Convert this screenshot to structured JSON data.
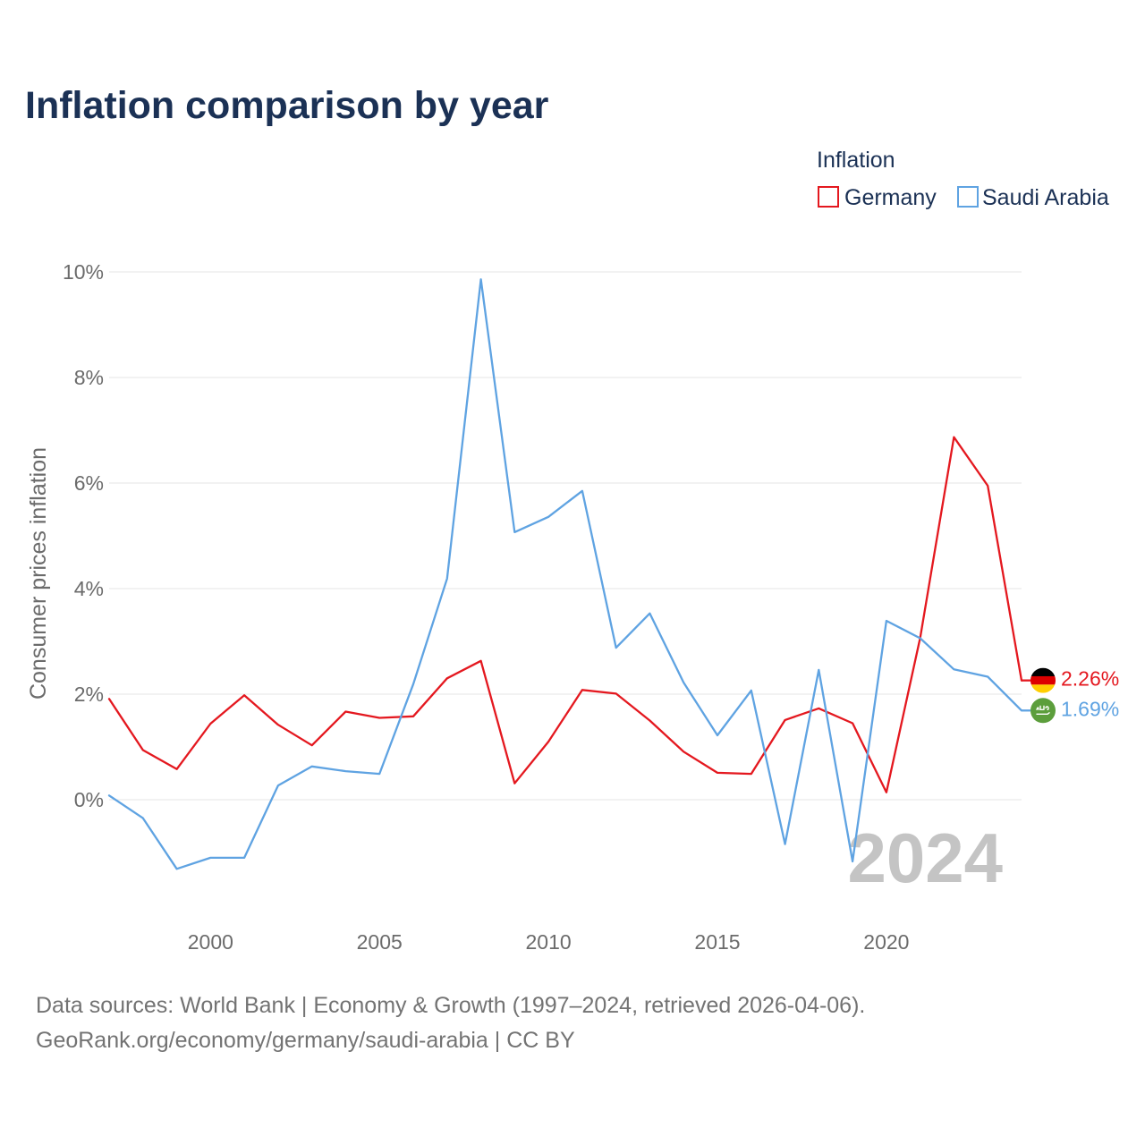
{
  "chart_data": {
    "type": "line",
    "title": "Inflation comparison by year",
    "ylabel": "Consumer prices inflation",
    "legend_title": "Inflation",
    "legend_position": "top-right",
    "grid": true,
    "x": [
      1997,
      1998,
      1999,
      2000,
      2001,
      2002,
      2003,
      2004,
      2005,
      2006,
      2007,
      2008,
      2009,
      2010,
      2011,
      2012,
      2013,
      2014,
      2015,
      2016,
      2017,
      2018,
      2019,
      2020,
      2021,
      2022,
      2023,
      2024
    ],
    "xlim": [
      1997,
      2024
    ],
    "ylim": [
      -2,
      10
    ],
    "x_ticks": [
      2000,
      2005,
      2010,
      2015,
      2020
    ],
    "y_ticks": [
      0,
      2,
      4,
      6,
      8,
      10
    ],
    "y_tick_labels": [
      "0%",
      "2%",
      "4%",
      "6%",
      "8%",
      "10%"
    ],
    "year_watermark": "2024",
    "series": [
      {
        "name": "Germany",
        "color": "#e4181f",
        "icon": "germany-flag-icon",
        "values": [
          1.91,
          0.94,
          0.58,
          1.44,
          1.98,
          1.42,
          1.03,
          1.67,
          1.55,
          1.58,
          2.3,
          2.63,
          0.31,
          1.1,
          2.08,
          2.01,
          1.5,
          0.91,
          0.51,
          0.49,
          1.51,
          1.73,
          1.45,
          0.14,
          3.07,
          6.87,
          5.95,
          2.26
        ],
        "end_label": "2.26%"
      },
      {
        "name": "Saudi Arabia",
        "color": "#5fa3e2",
        "icon": "saudi-arabia-flag-icon",
        "values": [
          0.08,
          -0.35,
          -1.31,
          -1.1,
          -1.1,
          0.27,
          0.63,
          0.54,
          0.49,
          2.19,
          4.19,
          9.86,
          5.07,
          5.36,
          5.85,
          2.88,
          3.53,
          2.22,
          1.22,
          2.07,
          -0.84,
          2.46,
          -1.17,
          3.39,
          3.06,
          2.47,
          2.33,
          1.69
        ],
        "end_label": "1.69%"
      }
    ]
  },
  "footer": {
    "sources": "Data sources: World Bank | Economy & Growth (1997–2024, retrieved 2026-04-06).",
    "credit": "GeoRank.org/economy/germany/saudi-arabia | CC BY"
  }
}
